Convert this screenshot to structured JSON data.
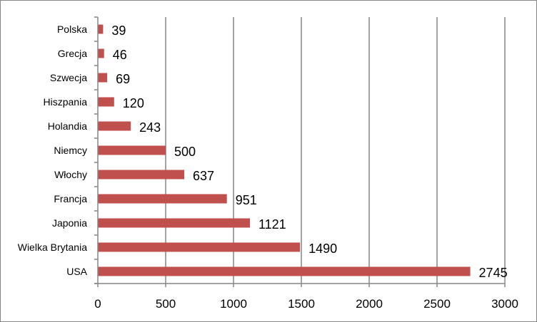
{
  "chart_data": {
    "type": "bar",
    "orientation": "horizontal",
    "categories": [
      "Polska",
      "Grecja",
      "Szwecja",
      "Hiszpania",
      "Holandia",
      "Niemcy",
      "Włochy",
      "Francja",
      "Japonia",
      "Wielka Brytania",
      "USA"
    ],
    "values": [
      39,
      46,
      69,
      120,
      243,
      500,
      637,
      951,
      1121,
      1490,
      2745
    ],
    "data_labels": [
      "39",
      "46",
      "69",
      "120",
      "243",
      "500",
      "637",
      "951",
      "1121",
      "1490",
      "2745"
    ],
    "x_ticks": [
      0,
      500,
      1000,
      1500,
      2000,
      2500,
      3000
    ],
    "x_tick_labels": [
      "0",
      "500",
      "1000",
      "1500",
      "2000",
      "2500",
      "3000"
    ],
    "xlim": [
      0,
      3000
    ],
    "title": "",
    "xlabel": "",
    "ylabel": "",
    "grid": "vertical",
    "legend": "none",
    "colors": {
      "bar": "#C0504D",
      "grid": "#868686",
      "border": "#868686",
      "text": "#000000"
    }
  }
}
